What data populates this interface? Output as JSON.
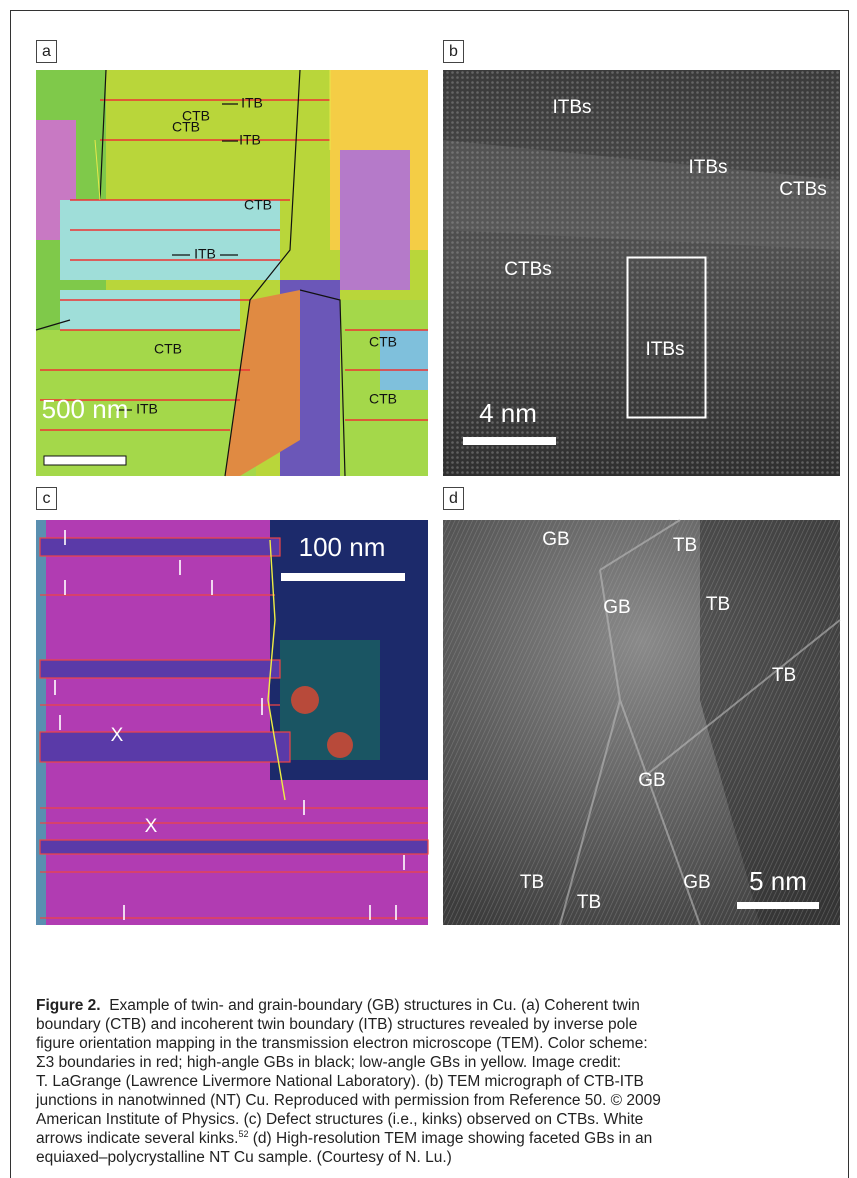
{
  "panels": [
    {
      "label": "a",
      "annotations": [
        "CTB",
        "ITB",
        "CTB",
        "ITB",
        "CTB",
        "ITB",
        "CTB",
        "CTB",
        "ITB",
        "CTB"
      ],
      "scale_bar": "500 nm"
    },
    {
      "label": "b",
      "annotations": [
        "ITBs",
        "ITBs",
        "CTBs",
        "CTBs",
        "ITBs"
      ],
      "scale_bar": "4 nm"
    },
    {
      "label": "c",
      "annotations": [
        "X",
        "X"
      ],
      "scale_bar": "100 nm"
    },
    {
      "label": "d",
      "annotations": [
        "GB",
        "TB",
        "GB",
        "TB",
        "TB",
        "GB",
        "TB",
        "TB",
        "GB"
      ],
      "scale_bar": "5 nm"
    }
  ],
  "caption": {
    "label": "Figure 2.",
    "first_line": "  Example of twin- and grain-boundary (GB) structures in Cu. (a) Coherent twin",
    "lines": [
      "boundary (CTB) and incoherent twin boundary (ITB) structures revealed by inverse pole",
      "figure orientation mapping in the transmission electron microscope (TEM). Color scheme:",
      "Σ3 boundaries in red; high-angle GBs in black; low-angle GBs in yellow. Image credit:",
      "T. LaGrange (Lawrence Livermore National Laboratory). (b) TEM micrograph of CTB-ITB",
      "junctions in nanotwinned (NT) Cu. Reproduced with permission from Reference 50. © 2009",
      "American Institute of Physics. (c) Defect structures (i.e., kinks) observed on CTBs. White"
    ],
    "note_line": {
      "text": "arrows indicate several kinks.",
      "superscript": "52",
      "text_after": " (d) High-resolution TEM image showing faceted GBs in an"
    },
    "last_line": "equiaxed–polycrystalline NT Cu sample. (Courtesy of N. Lu.)"
  }
}
